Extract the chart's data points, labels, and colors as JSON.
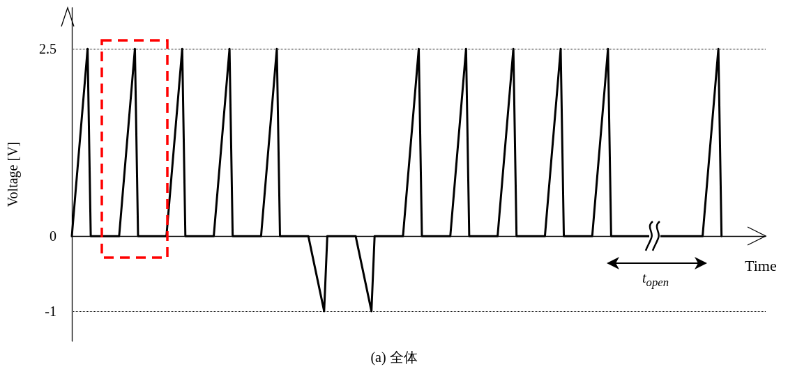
{
  "chart_data": {
    "type": "line",
    "ylabel": "Voltage [V]",
    "xlabel": "Time",
    "annotations": [
      "t$_{open}$",
      "(a) 全体"
    ],
    "categories": [
      null,
      null,
      null,
      null,
      null,
      null,
      null,
      null,
      null,
      null,
      null,
      null,
      null,
      null,
      null,
      null,
      null,
      null,
      null,
      null,
      null,
      null,
      null,
      null,
      null,
      null,
      null,
      null,
      null,
      null,
      null,
      null,
      null,
      null,
      null,
      null,
      null,
      null,
      null,
      null,
      null,
      null,
      null,
      null,
      null,
      null,
      null,
      null,
      null,
      null,
      null,
      null,
      null,
      null,
      null,
      null,
      null,
      null,
      null,
      null,
      null,
      null,
      null,
      null,
      null,
      null,
      null,
      null,
      null,
      null,
      null,
      null,
      null,
      null,
      null,
      null,
      null,
      null,
      null,
      null,
      null,
      null,
      null,
      null,
      null,
      null,
      null,
      null,
      null,
      null,
      null,
      null,
      null,
      null,
      null,
      null,
      null,
      null,
      null,
      null,
      null,
      null,
      null,
      null,
      null,
      null,
      null,
      null,
      null,
      null,
      null,
      null,
      null,
      null,
      null,
      null,
      null,
      null,
      null,
      null,
      null,
      null,
      null,
      null,
      null,
      null,
      null,
      null,
      null,
      null,
      null,
      null,
      null,
      null,
      null,
      null,
      null,
      null,
      null,
      null,
      null,
      null,
      null,
      null,
      null,
      null,
      null,
      null,
      null,
      null,
      null,
      null,
      null,
      null,
      null,
      null,
      null,
      null,
      null,
      null,
      null,
      null,
      null,
      null,
      null,
      null,
      null,
      null,
      null,
      null,
      null,
      null,
      null,
      null,
      null,
      null,
      null,
      null,
      null,
      null,
      null,
      null,
      null,
      null,
      null,
      null,
      null,
      null,
      null,
      null,
      null,
      null,
      null,
      null,
      null,
      null,
      null,
      null,
      null,
      null,
      null,
      null,
      null,
      null,
      null,
      null,
      null,
      null,
      null,
      null,
      null,
      null,
      null,
      null,
      null,
      null,
      null,
      null,
      null,
      null,
      null
    ],
    "series": [
      {
        "color": "#000000",
        "values": [
          0,
          0.5,
          1,
          1.5,
          2,
          2.5,
          0,
          0,
          0,
          0,
          0,
          0,
          0,
          0,
          0,
          0,
          0.5,
          1,
          1.5,
          2,
          2.5,
          0,
          0,
          0,
          0,
          0,
          0,
          0,
          0,
          0,
          0,
          0.5,
          1,
          1.5,
          2,
          2.5,
          0,
          0,
          0,
          0,
          0,
          0,
          0,
          0,
          0,
          0,
          0.5,
          1,
          1.5,
          2,
          2.5,
          0,
          0,
          0,
          0,
          0,
          0,
          0,
          0,
          0,
          0,
          0.5,
          1,
          1.5,
          2,
          2.5,
          0,
          0,
          0,
          0,
          0,
          0,
          0,
          0,
          0,
          0,
          -0.2,
          -0.4,
          -0.6,
          -0.8,
          -1,
          0,
          0,
          0,
          0,
          0,
          0,
          0,
          0,
          0,
          0,
          -0.2,
          -0.4,
          -0.6,
          -0.8,
          -1,
          0,
          0,
          0,
          0,
          0,
          0,
          0,
          0,
          0,
          0,
          0.5,
          1,
          1.5,
          2,
          2.5,
          0,
          0,
          0,
          0,
          0,
          0,
          0,
          0,
          0,
          0,
          0.5,
          1,
          1.5,
          2,
          2.5,
          0,
          0,
          0,
          0,
          0,
          0,
          0,
          0,
          0,
          0,
          0.5,
          1,
          1.5,
          2,
          2.5,
          0,
          0,
          0,
          0,
          0,
          0,
          0,
          0,
          0,
          0,
          0.5,
          1,
          1.5,
          2,
          2.5,
          0,
          0,
          0,
          0,
          0,
          0,
          0,
          0,
          0,
          0,
          0.5,
          1,
          1.5,
          2,
          2.5,
          0,
          0,
          0,
          0,
          0,
          0,
          0,
          0,
          0,
          0,
          0,
          0,
          0,
          0,
          0,
          0,
          0,
          0,
          0,
          0,
          0,
          0,
          0,
          0,
          0,
          0,
          0,
          0,
          0,
          0,
          0.5,
          1,
          1.5,
          2,
          2.5,
          0,
          null,
          null,
          null,
          null,
          null,
          null,
          null,
          null,
          null,
          null,
          null,
          null,
          null,
          null
        ]
      }
    ],
    "ylim": [
      -1.4,
      3.05
    ],
    "yticks": [
      2.5,
      0,
      -1
    ],
    "grid": "y",
    "tick_labels": "y"
  }
}
